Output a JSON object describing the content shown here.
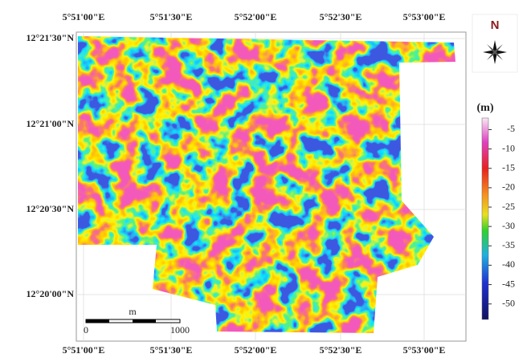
{
  "map": {
    "x_labels": [
      "5°51'00\"E",
      "5°51'30\"E",
      "5°52'00\"E",
      "5°52'30\"E",
      "5°53'00\"E"
    ],
    "y_labels": [
      "12°21'30\"N",
      "12°21'00\"N",
      "12°20'30\"N",
      "12°20'00\"N"
    ],
    "north": "N",
    "scale_bar": {
      "unit": "m",
      "start": "0",
      "end": "1000"
    },
    "colorbar": {
      "title": "(m)",
      "lim": [
        -2,
        -54
      ],
      "ticks": [
        -5,
        -10,
        -15,
        -20,
        -25,
        -30,
        -35,
        -40,
        -45,
        -50
      ]
    }
  }
}
